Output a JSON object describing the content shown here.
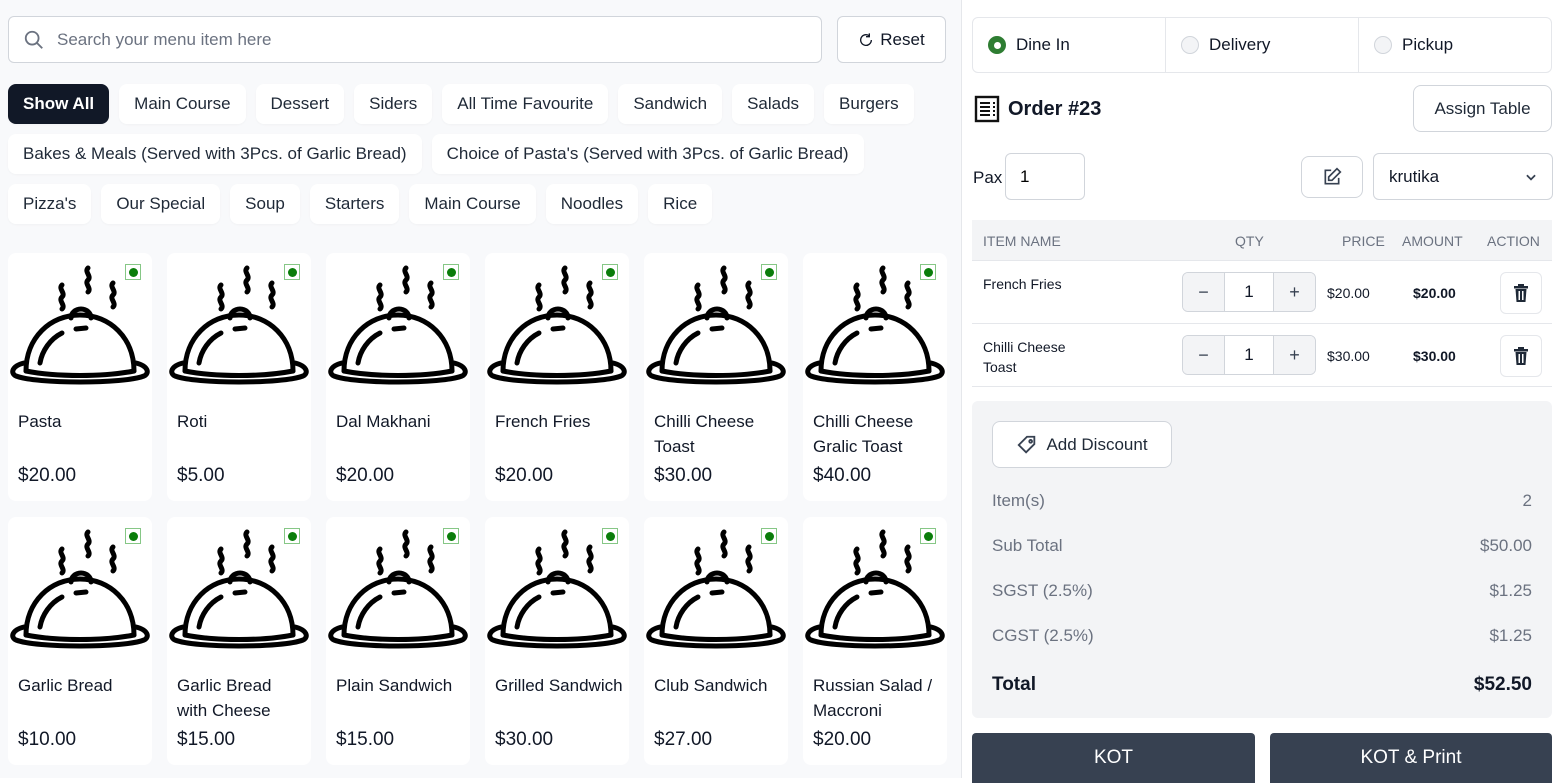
{
  "search": {
    "placeholder": "Search your menu item here",
    "reset_label": "Reset"
  },
  "categories": [
    "Show All",
    "Main Course",
    "Dessert",
    "Siders",
    "All Time Favourite",
    "Sandwich",
    "Salads",
    "Burgers",
    "Bakes & Meals (Served with 3Pcs. of Garlic Bread)",
    "Choice of Pasta's (Served with 3Pcs. of Garlic Bread)",
    "Pizza's",
    "Our Special",
    "Soup",
    "Starters",
    "Main Course",
    "Noodles",
    "Rice"
  ],
  "active_category": "Show All",
  "menu_items": [
    {
      "name": "Pasta",
      "price": "$20.00"
    },
    {
      "name": "Roti",
      "price": "$5.00"
    },
    {
      "name": "Dal Makhani",
      "price": "$20.00"
    },
    {
      "name": "French Fries",
      "price": "$20.00"
    },
    {
      "name": "Chilli Cheese Toast",
      "price": "$30.00"
    },
    {
      "name": "Chilli Cheese Gralic Toast",
      "price": "$40.00"
    },
    {
      "name": "Garlic Bread",
      "price": "$10.00"
    },
    {
      "name": "Garlic Bread with Cheese",
      "price": "$15.00"
    },
    {
      "name": "Plain Sandwich",
      "price": "$15.00"
    },
    {
      "name": "Grilled Sandwich",
      "price": "$30.00"
    },
    {
      "name": "Club Sandwich",
      "price": "$27.00"
    },
    {
      "name": "Russian Salad / Maccroni",
      "price": "$20.00"
    }
  ],
  "order": {
    "types": [
      {
        "label": "Dine In",
        "selected": true
      },
      {
        "label": "Delivery",
        "selected": false
      },
      {
        "label": "Pickup",
        "selected": false
      }
    ],
    "title": "Order #23",
    "assign_table": "Assign Table",
    "pax_label": "Pax",
    "pax_value": "1",
    "staff": "krutika",
    "columns": [
      "ITEM NAME",
      "QTY",
      "PRICE",
      "AMOUNT",
      "ACTION"
    ],
    "items": [
      {
        "name": "French Fries",
        "qty": "1",
        "price": "$20.00",
        "amount": "$20.00"
      },
      {
        "name": "Chilli Cheese Toast",
        "qty": "1",
        "price": "$30.00",
        "amount": "$30.00"
      }
    ],
    "add_discount": "Add Discount",
    "summary": [
      {
        "label": "Item(s)",
        "value": "2"
      },
      {
        "label": "Sub Total",
        "value": "$50.00"
      },
      {
        "label": "SGST (2.5%)",
        "value": "$1.25"
      },
      {
        "label": "CGST (2.5%)",
        "value": "$1.25"
      }
    ],
    "total_label": "Total",
    "total_value": "$52.50",
    "kot_label": "KOT",
    "kot_print_label": "KOT & Print"
  },
  "colors": {
    "veg_indicator": "#0a7d0a",
    "dark": "#111827",
    "button_dark": "#374151",
    "radio_selected": "#2e7d32"
  }
}
